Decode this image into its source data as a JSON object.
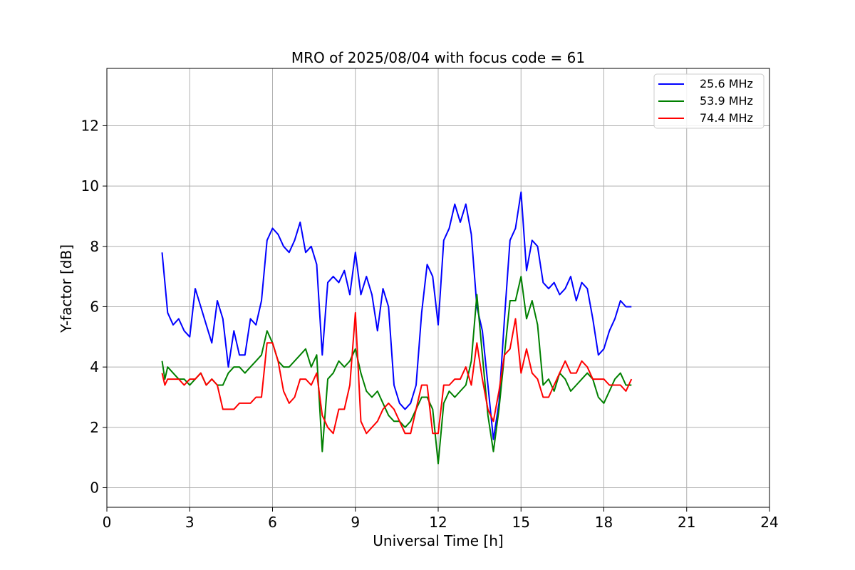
{
  "chart_data": {
    "type": "line",
    "title": "MRO of 2025/08/04 with focus code = 61",
    "xlabel": "Universal Time [h]",
    "ylabel": "Y-factor [dB]",
    "xlim": [
      0,
      24
    ],
    "ylim": [
      -0.65,
      13.9
    ],
    "xticks": [
      0,
      3,
      6,
      9,
      12,
      15,
      18,
      21,
      24
    ],
    "yticks": [
      0,
      2,
      4,
      6,
      8,
      10,
      12
    ],
    "grid": true,
    "legend_position": "top-right",
    "series": [
      {
        "name": "25.6 MHz",
        "color": "#0000ff",
        "x": [
          2.0,
          2.1,
          2.2,
          2.4,
          2.6,
          2.8,
          3.0,
          3.2,
          3.4,
          3.6,
          3.8,
          4.0,
          4.2,
          4.4,
          4.6,
          4.8,
          5.0,
          5.2,
          5.4,
          5.6,
          5.8,
          6.0,
          6.2,
          6.4,
          6.6,
          6.8,
          7.0,
          7.2,
          7.4,
          7.6,
          7.8,
          8.0,
          8.2,
          8.4,
          8.6,
          8.8,
          9.0,
          9.2,
          9.4,
          9.6,
          9.8,
          10.0,
          10.2,
          10.4,
          10.6,
          10.8,
          11.0,
          11.2,
          11.4,
          11.6,
          11.8,
          12.0,
          12.2,
          12.4,
          12.6,
          12.8,
          13.0,
          13.2,
          13.4,
          13.6,
          13.8,
          14.0,
          14.2,
          14.4,
          14.6,
          14.8,
          15.0,
          15.2,
          15.4,
          15.6,
          15.8,
          16.0,
          16.2,
          16.4,
          16.6,
          16.8,
          17.0,
          17.2,
          17.4,
          17.6,
          17.8,
          18.0,
          18.2,
          18.4,
          18.6,
          18.8,
          19.0
        ],
        "y": [
          7.8,
          6.8,
          5.8,
          5.4,
          5.6,
          5.2,
          5.0,
          6.6,
          6.0,
          5.4,
          4.8,
          6.2,
          5.6,
          4.0,
          5.2,
          4.4,
          4.4,
          5.6,
          5.4,
          6.2,
          8.2,
          8.6,
          8.4,
          8.0,
          7.8,
          8.2,
          8.8,
          7.8,
          8.0,
          7.4,
          4.4,
          6.8,
          7.0,
          6.8,
          7.2,
          6.4,
          7.8,
          6.4,
          7.0,
          6.4,
          5.2,
          6.6,
          6.0,
          3.4,
          2.8,
          2.6,
          2.8,
          3.4,
          5.8,
          7.4,
          7.0,
          5.4,
          8.2,
          8.6,
          9.4,
          8.8,
          9.4,
          8.4,
          6.0,
          5.2,
          3.4,
          1.6,
          2.8,
          5.6,
          8.2,
          8.6,
          9.8,
          7.2,
          8.2,
          8.0,
          6.8,
          6.6,
          6.8,
          6.4,
          6.6,
          7.0,
          6.2,
          6.8,
          6.6,
          5.6,
          4.4,
          4.6,
          5.2,
          5.6,
          6.2,
          6.0,
          6.0
        ]
      },
      {
        "name": "53.9 MHz",
        "color": "#008000",
        "x": [
          2.0,
          2.1,
          2.2,
          2.4,
          2.6,
          2.8,
          3.0,
          3.2,
          3.4,
          3.6,
          3.8,
          4.0,
          4.2,
          4.4,
          4.6,
          4.8,
          5.0,
          5.2,
          5.4,
          5.6,
          5.8,
          6.0,
          6.2,
          6.4,
          6.6,
          6.8,
          7.0,
          7.2,
          7.4,
          7.6,
          7.8,
          8.0,
          8.2,
          8.4,
          8.6,
          8.8,
          9.0,
          9.2,
          9.4,
          9.6,
          9.8,
          10.0,
          10.2,
          10.4,
          10.6,
          10.8,
          11.0,
          11.2,
          11.4,
          11.6,
          11.8,
          12.0,
          12.2,
          12.4,
          12.6,
          12.8,
          13.0,
          13.2,
          13.4,
          13.6,
          13.8,
          14.0,
          14.2,
          14.4,
          14.6,
          14.8,
          15.0,
          15.2,
          15.4,
          15.6,
          15.8,
          16.0,
          16.2,
          16.4,
          16.6,
          16.8,
          17.0,
          17.2,
          17.4,
          17.6,
          17.8,
          18.0,
          18.2,
          18.4,
          18.6,
          18.8,
          19.0
        ],
        "y": [
          4.2,
          3.6,
          4.0,
          3.8,
          3.6,
          3.6,
          3.4,
          3.6,
          3.8,
          3.4,
          3.6,
          3.4,
          3.4,
          3.8,
          4.0,
          4.0,
          3.8,
          4.0,
          4.2,
          4.4,
          5.2,
          4.8,
          4.2,
          4.0,
          4.0,
          4.2,
          4.4,
          4.6,
          4.0,
          4.4,
          1.2,
          3.6,
          3.8,
          4.2,
          4.0,
          4.2,
          4.6,
          3.8,
          3.2,
          3.0,
          3.2,
          2.8,
          2.4,
          2.2,
          2.2,
          2.0,
          2.2,
          2.6,
          3.0,
          3.0,
          2.6,
          0.8,
          2.8,
          3.2,
          3.0,
          3.2,
          3.4,
          4.2,
          6.4,
          4.4,
          2.4,
          1.2,
          2.6,
          4.4,
          6.2,
          6.2,
          7.0,
          5.6,
          6.2,
          5.4,
          3.4,
          3.6,
          3.2,
          3.8,
          3.6,
          3.2,
          3.4,
          3.6,
          3.8,
          3.6,
          3.0,
          2.8,
          3.2,
          3.6,
          3.8,
          3.4,
          3.4
        ]
      },
      {
        "name": "74.4 MHz",
        "color": "#ff0000",
        "x": [
          2.0,
          2.1,
          2.2,
          2.4,
          2.6,
          2.8,
          3.0,
          3.2,
          3.4,
          3.6,
          3.8,
          4.0,
          4.2,
          4.4,
          4.6,
          4.8,
          5.0,
          5.2,
          5.4,
          5.6,
          5.8,
          6.0,
          6.2,
          6.4,
          6.6,
          6.8,
          7.0,
          7.2,
          7.4,
          7.6,
          7.8,
          8.0,
          8.2,
          8.4,
          8.6,
          8.8,
          9.0,
          9.2,
          9.4,
          9.6,
          9.8,
          10.0,
          10.2,
          10.4,
          10.6,
          10.8,
          11.0,
          11.2,
          11.4,
          11.6,
          11.8,
          12.0,
          12.2,
          12.4,
          12.6,
          12.8,
          13.0,
          13.2,
          13.4,
          13.6,
          13.8,
          14.0,
          14.2,
          14.4,
          14.6,
          14.8,
          15.0,
          15.2,
          15.4,
          15.6,
          15.8,
          16.0,
          16.2,
          16.4,
          16.6,
          16.8,
          17.0,
          17.2,
          17.4,
          17.6,
          17.8,
          18.0,
          18.2,
          18.4,
          18.6,
          18.8,
          19.0
        ],
        "y": [
          3.8,
          3.4,
          3.6,
          3.6,
          3.6,
          3.4,
          3.6,
          3.6,
          3.8,
          3.4,
          3.6,
          3.4,
          2.6,
          2.6,
          2.6,
          2.8,
          2.8,
          2.8,
          3.0,
          3.0,
          4.8,
          4.8,
          4.2,
          3.2,
          2.8,
          3.0,
          3.6,
          3.6,
          3.4,
          3.8,
          2.4,
          2.0,
          1.8,
          2.6,
          2.6,
          3.4,
          5.8,
          2.2,
          1.8,
          2.0,
          2.2,
          2.6,
          2.8,
          2.6,
          2.2,
          1.8,
          1.8,
          2.6,
          3.4,
          3.4,
          1.8,
          1.8,
          3.4,
          3.4,
          3.6,
          3.6,
          4.0,
          3.4,
          4.8,
          3.6,
          2.6,
          2.2,
          3.2,
          4.4,
          4.6,
          5.6,
          3.8,
          4.6,
          3.8,
          3.6,
          3.0,
          3.0,
          3.4,
          3.8,
          4.2,
          3.8,
          3.8,
          4.2,
          4.0,
          3.6,
          3.6,
          3.6,
          3.4,
          3.4,
          3.4,
          3.2,
          3.6
        ]
      }
    ]
  }
}
